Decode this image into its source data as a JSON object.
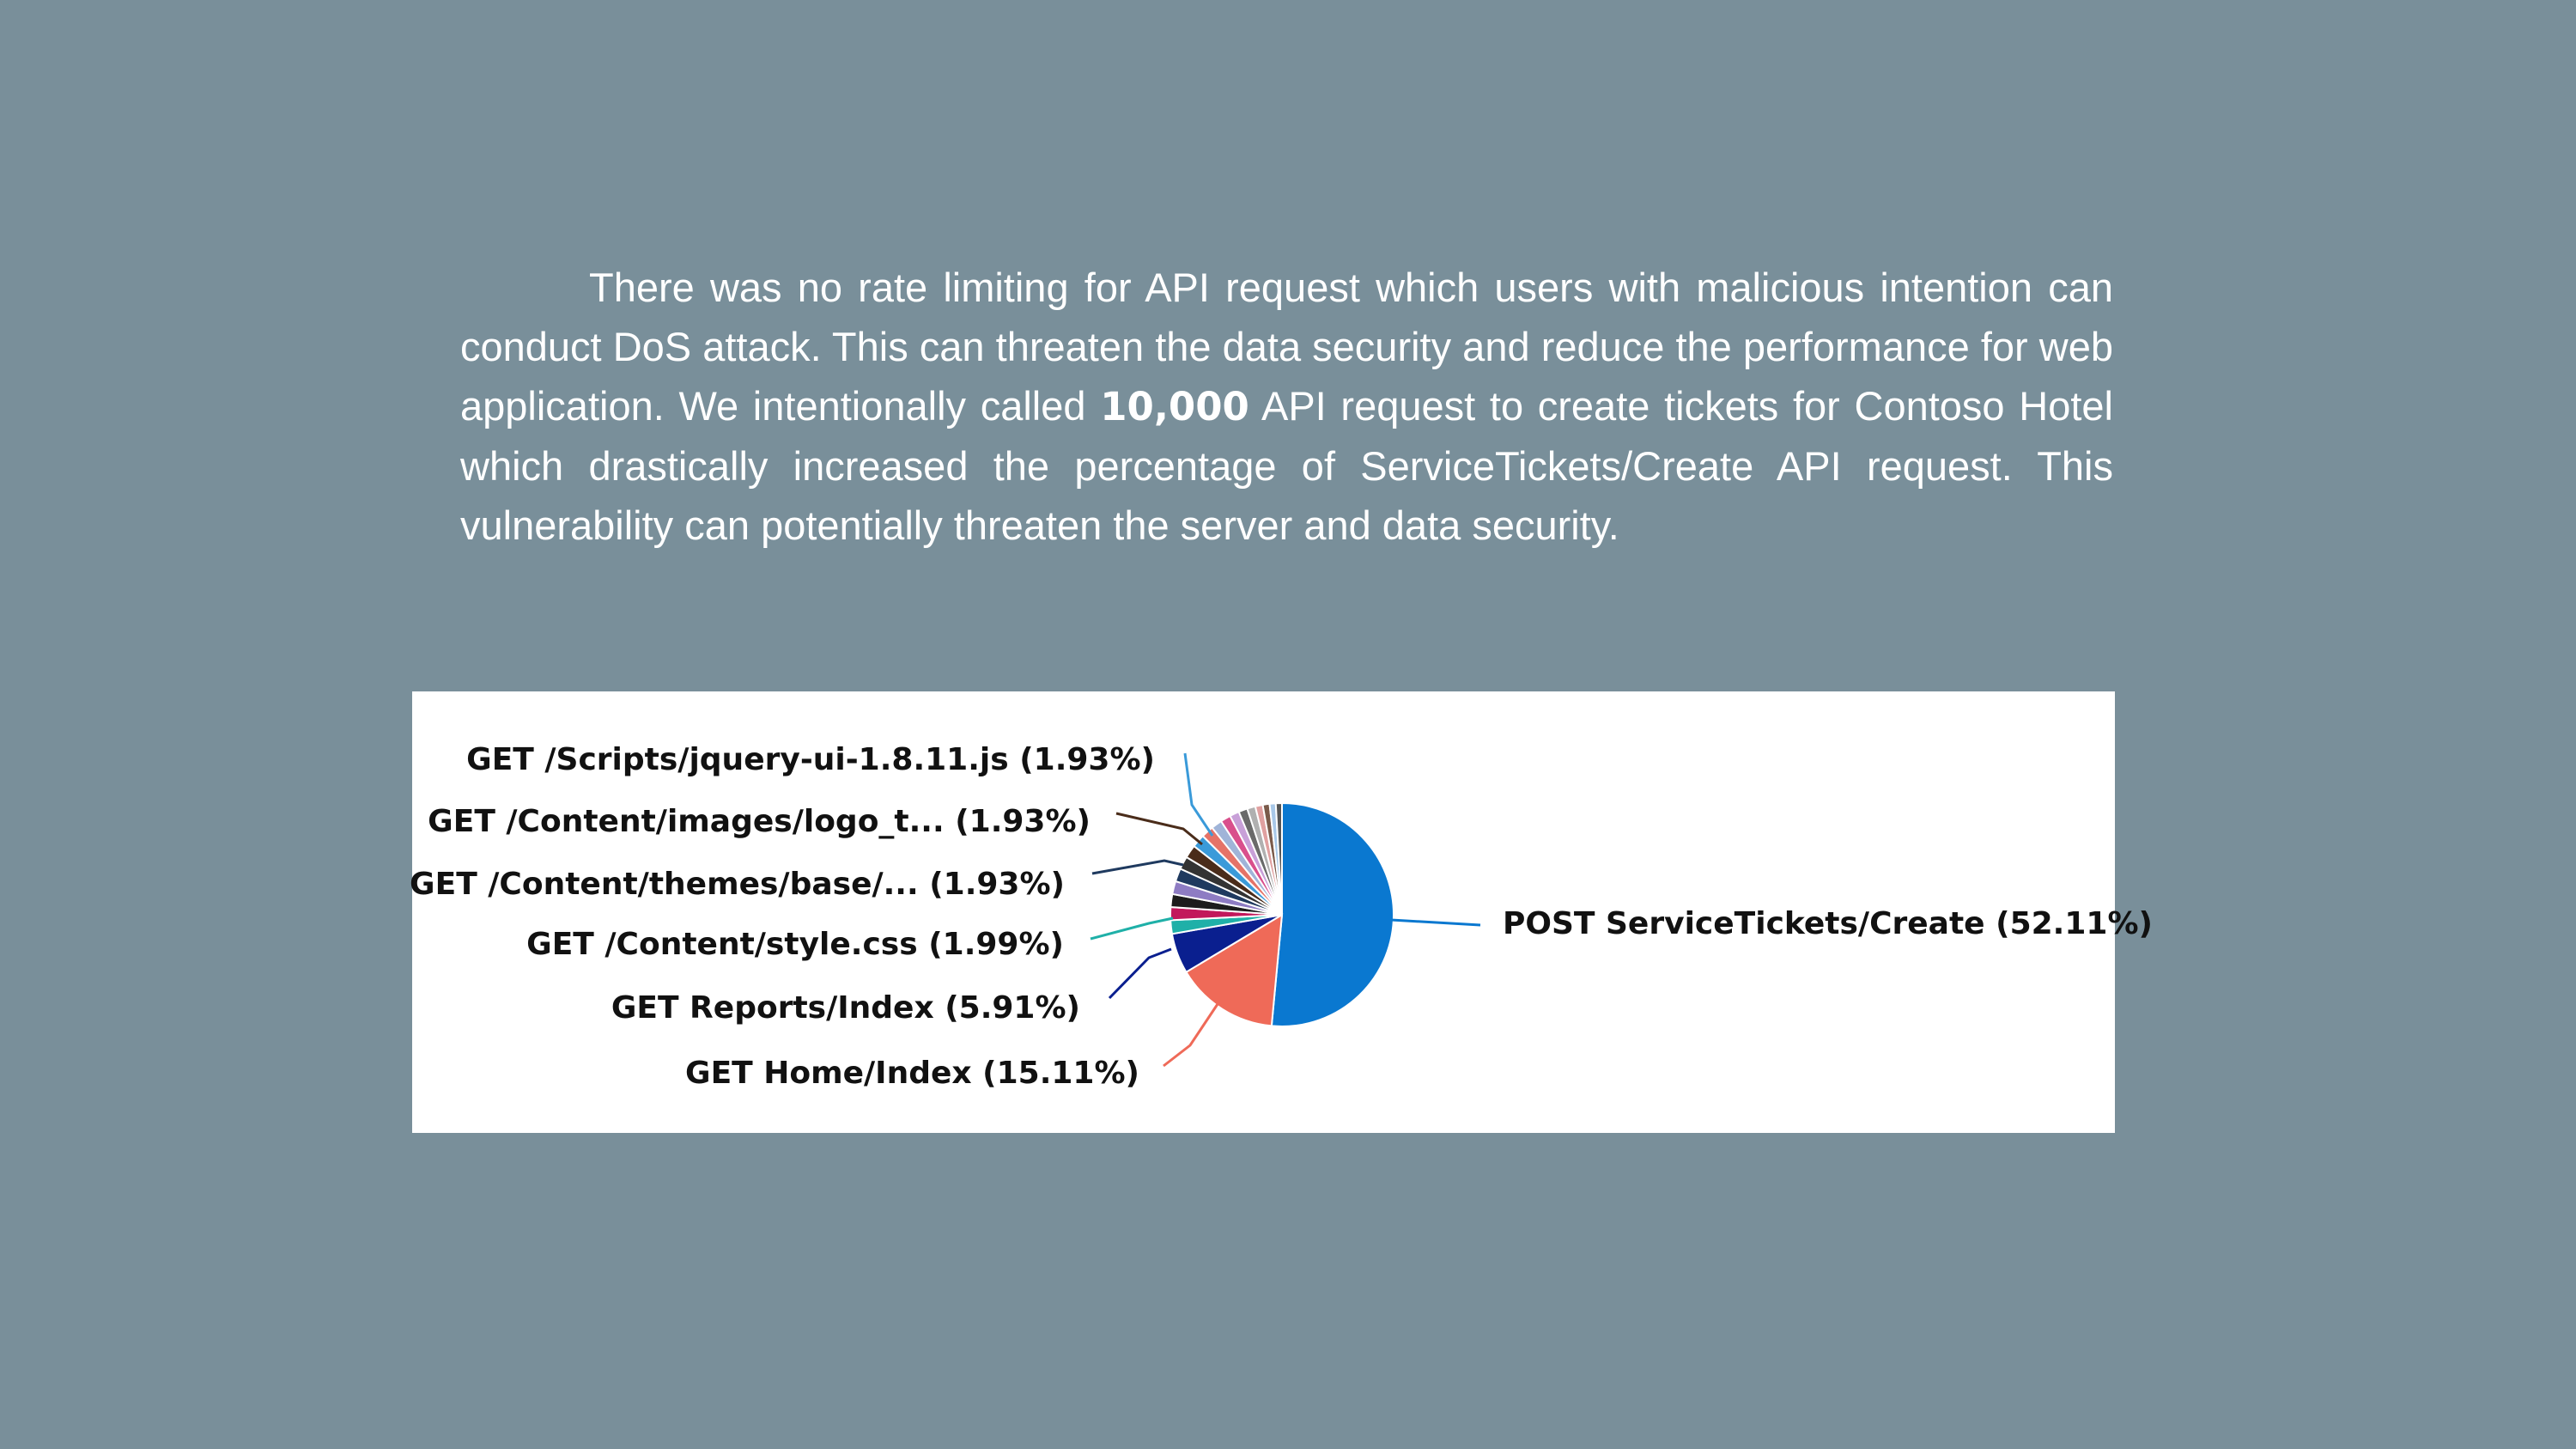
{
  "text": {
    "part1": "There was no rate limiting for API request which users with malicious intention can conduct DoS attack. This can threaten the data security and reduce the performance for web application. We intentionally called ",
    "highlight": "10,000",
    "part2": " API request to create tickets for Contoso Hotel which drastically increased the percentage of ServiceTickets/Create API request. This vulnerability can potentially threaten the server and data security."
  },
  "chart_data": {
    "type": "pie",
    "title": "",
    "slices": [
      {
        "label": "POST ServiceTickets/Create (52.11%)",
        "value": 52.11,
        "color": "#0a78d0"
      },
      {
        "label": "GET Home/Index (15.11%)",
        "value": 15.11,
        "color": "#ef6a58"
      },
      {
        "label": "GET Reports/Index (5.91%)",
        "value": 5.91,
        "color": "#0a1f8f"
      },
      {
        "label": "GET /Content/style.css (1.99%)",
        "value": 1.99,
        "color": "#1fb0a8"
      },
      {
        "value": 1.9,
        "color": "#c2185b"
      },
      {
        "value": 1.9,
        "color": "#1c1c1c"
      },
      {
        "value": 1.9,
        "color": "#8e7cc3"
      },
      {
        "label": "GET /Content/themes/base/... (1.93%)",
        "value": 1.93,
        "color": "#1f3a5f"
      },
      {
        "value": 1.9,
        "color": "#333333"
      },
      {
        "label": "GET /Content/images/logo_t... (1.93%)",
        "value": 1.93,
        "color": "#4a2c1a"
      },
      {
        "label": "GET /Scripts/jquery-ui-1.8.11.js (1.93%)",
        "value": 1.93,
        "color": "#3a9ad9"
      },
      {
        "value": 1.8,
        "color": "#e57368"
      },
      {
        "value": 1.6,
        "color": "#a0b4d8"
      },
      {
        "value": 1.5,
        "color": "#d94f8c"
      },
      {
        "value": 1.4,
        "color": "#c8a0d8"
      },
      {
        "value": 1.3,
        "color": "#6a6a6a"
      },
      {
        "value": 1.2,
        "color": "#b0b0b0"
      },
      {
        "value": 1.1,
        "color": "#e0a0a0"
      },
      {
        "value": 1.0,
        "color": "#7a5a4a"
      },
      {
        "value": 0.9,
        "color": "#a8c8e8"
      },
      {
        "value": 0.9,
        "color": "#555555"
      }
    ]
  }
}
